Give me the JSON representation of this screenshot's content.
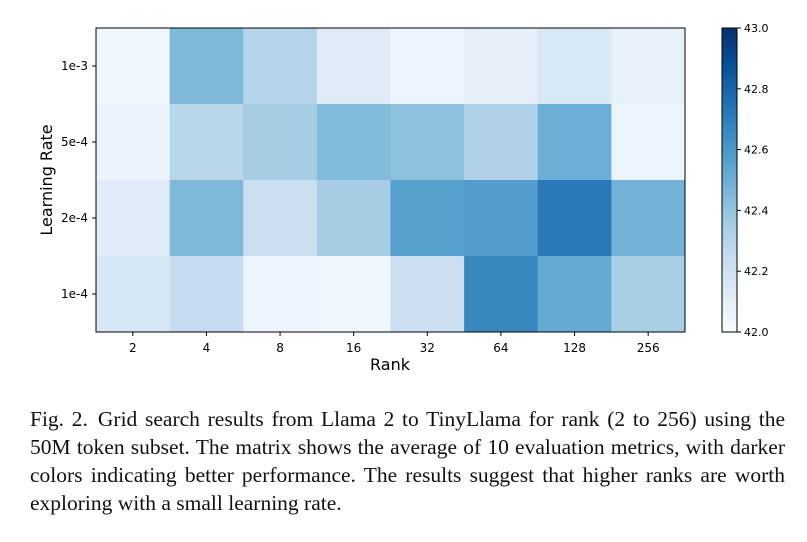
{
  "chart_data": {
    "type": "heatmap",
    "xlabel": "Rank",
    "ylabel": "Learning Rate",
    "x_categories": [
      "2",
      "4",
      "8",
      "16",
      "32",
      "64",
      "128",
      "256"
    ],
    "y_categories": [
      "1e-3",
      "5e-4",
      "2e-4",
      "1e-4"
    ],
    "values": [
      [
        42.04,
        42.45,
        42.3,
        42.12,
        42.05,
        42.09,
        42.15,
        42.08
      ],
      [
        42.06,
        42.29,
        42.35,
        42.44,
        42.42,
        42.32,
        42.5,
        42.05
      ],
      [
        42.12,
        42.45,
        42.22,
        42.35,
        42.56,
        42.58,
        42.72,
        42.48
      ],
      [
        42.16,
        42.25,
        42.05,
        42.04,
        42.22,
        42.66,
        42.52,
        42.34
      ]
    ],
    "colorbar": {
      "range": [
        42.0,
        43.0
      ],
      "ticks": [
        "42.0",
        "42.2",
        "42.4",
        "42.6",
        "42.8",
        "43.0"
      ],
      "colormap": "Blues"
    }
  },
  "caption": {
    "label": "Fig. 2.",
    "text": "Grid search results from Llama 2 to TinyLlama for rank (2 to 256) using the 50M token subset. The matrix shows the average of 10 evaluation metrics, with darker colors indicating better performance. The results suggest that higher ranks are worth exploring with a small learning rate."
  }
}
